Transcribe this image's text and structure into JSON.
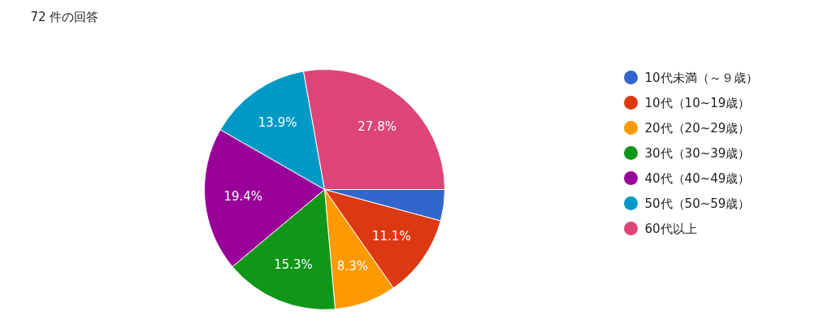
{
  "chart_data": {
    "type": "pie",
    "title": "72 件の回答",
    "categories": [
      "10代未満（～９歳）",
      "10代（10~19歳）",
      "20代（20~29歳）",
      "30代（30~39歳）",
      "40代（40~49歳）",
      "50代（50~59歳）",
      "60代以上"
    ],
    "values": [
      4.2,
      11.1,
      8.3,
      15.3,
      19.4,
      13.9,
      27.8
    ],
    "colors": [
      "#3366cc",
      "#dc3912",
      "#ff9900",
      "#109618",
      "#990099",
      "#0099c6",
      "#dd4477"
    ],
    "value_labels": [
      null,
      "11.1%",
      "8.3%",
      "15.3%",
      "19.4%",
      "13.9%",
      "27.8%"
    ],
    "legend": "right"
  }
}
